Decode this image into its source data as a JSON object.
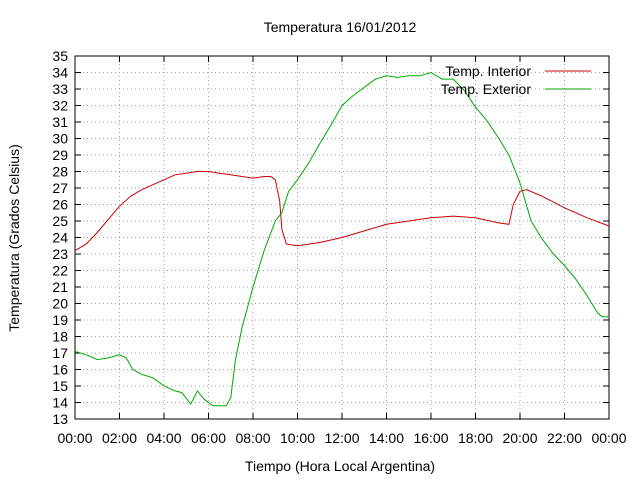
{
  "chart_data": {
    "type": "line",
    "title": "Temperatura 16/01/2012",
    "xlabel": "Tiempo (Hora Local Argentina)",
    "ylabel": "Temperatura (Grados Celsius)",
    "xlim": [
      0,
      24
    ],
    "ylim": [
      13,
      35
    ],
    "x_tick_labels": [
      "00:00",
      "02:00",
      "04:00",
      "06:00",
      "08:00",
      "10:00",
      "12:00",
      "14:00",
      "16:00",
      "18:00",
      "20:00",
      "22:00",
      "00:00"
    ],
    "y_ticks": [
      13,
      14,
      15,
      16,
      17,
      18,
      19,
      20,
      21,
      22,
      23,
      24,
      25,
      26,
      27,
      28,
      29,
      30,
      31,
      32,
      33,
      34,
      35
    ],
    "grid": true,
    "legend_position": "top-right",
    "series": [
      {
        "name": "Temp. Interior",
        "color": "#cc0000",
        "points": [
          [
            0.0,
            23.2
          ],
          [
            0.5,
            23.6
          ],
          [
            1.0,
            24.3
          ],
          [
            1.5,
            25.1
          ],
          [
            2.0,
            25.9
          ],
          [
            2.5,
            26.5
          ],
          [
            3.0,
            26.9
          ],
          [
            3.5,
            27.2
          ],
          [
            4.0,
            27.5
          ],
          [
            4.5,
            27.8
          ],
          [
            5.0,
            27.9
          ],
          [
            5.5,
            28.0
          ],
          [
            6.0,
            28.0
          ],
          [
            6.5,
            27.9
          ],
          [
            7.0,
            27.8
          ],
          [
            7.5,
            27.7
          ],
          [
            8.0,
            27.6
          ],
          [
            8.5,
            27.7
          ],
          [
            8.8,
            27.7
          ],
          [
            9.0,
            27.5
          ],
          [
            9.2,
            26.2
          ],
          [
            9.3,
            24.5
          ],
          [
            9.5,
            23.6
          ],
          [
            10.0,
            23.5
          ],
          [
            11.0,
            23.7
          ],
          [
            12.0,
            24.0
          ],
          [
            13.0,
            24.4
          ],
          [
            14.0,
            24.8
          ],
          [
            15.0,
            25.0
          ],
          [
            16.0,
            25.2
          ],
          [
            17.0,
            25.3
          ],
          [
            18.0,
            25.2
          ],
          [
            19.0,
            24.9
          ],
          [
            19.5,
            24.8
          ],
          [
            19.7,
            26.0
          ],
          [
            20.0,
            26.8
          ],
          [
            20.3,
            26.9
          ],
          [
            21.0,
            26.5
          ],
          [
            22.0,
            25.8
          ],
          [
            23.0,
            25.2
          ],
          [
            24.0,
            24.7
          ]
        ]
      },
      {
        "name": "Temp. Exterior",
        "color": "#00aa00",
        "points": [
          [
            0.0,
            17.1
          ],
          [
            0.5,
            16.9
          ],
          [
            1.0,
            16.6
          ],
          [
            1.5,
            16.7
          ],
          [
            2.0,
            16.9
          ],
          [
            2.3,
            16.7
          ],
          [
            2.6,
            16.0
          ],
          [
            3.0,
            15.7
          ],
          [
            3.5,
            15.5
          ],
          [
            4.0,
            15.0
          ],
          [
            4.5,
            14.7
          ],
          [
            4.8,
            14.6
          ],
          [
            5.2,
            13.9
          ],
          [
            5.5,
            14.7
          ],
          [
            5.8,
            14.2
          ],
          [
            6.2,
            13.8
          ],
          [
            6.8,
            13.8
          ],
          [
            7.0,
            14.3
          ],
          [
            7.2,
            16.5
          ],
          [
            7.5,
            18.5
          ],
          [
            8.0,
            21.0
          ],
          [
            8.5,
            23.2
          ],
          [
            9.0,
            25.0
          ],
          [
            9.3,
            25.5
          ],
          [
            9.6,
            26.8
          ],
          [
            10.0,
            27.5
          ],
          [
            10.5,
            28.5
          ],
          [
            11.0,
            29.7
          ],
          [
            11.5,
            30.8
          ],
          [
            12.0,
            32.0
          ],
          [
            12.5,
            32.6
          ],
          [
            13.0,
            33.1
          ],
          [
            13.5,
            33.6
          ],
          [
            14.0,
            33.8
          ],
          [
            14.5,
            33.7
          ],
          [
            15.0,
            33.8
          ],
          [
            15.5,
            33.8
          ],
          [
            16.0,
            34.0
          ],
          [
            16.5,
            33.6
          ],
          [
            17.0,
            33.6
          ],
          [
            17.5,
            32.9
          ],
          [
            18.0,
            31.9
          ],
          [
            18.5,
            31.1
          ],
          [
            19.0,
            30.1
          ],
          [
            19.5,
            29.0
          ],
          [
            20.0,
            27.3
          ],
          [
            20.5,
            25.0
          ],
          [
            21.0,
            23.9
          ],
          [
            21.5,
            23.0
          ],
          [
            22.0,
            22.3
          ],
          [
            22.5,
            21.5
          ],
          [
            23.0,
            20.5
          ],
          [
            23.5,
            19.4
          ],
          [
            23.7,
            19.2
          ],
          [
            24.0,
            19.2
          ]
        ]
      }
    ]
  }
}
